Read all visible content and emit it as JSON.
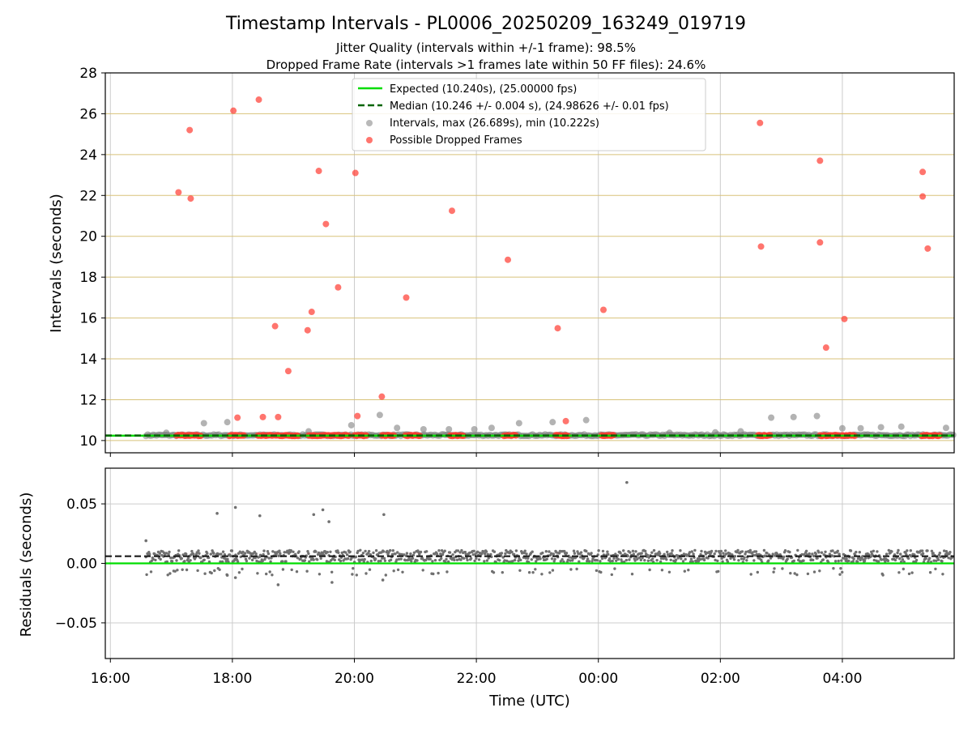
{
  "figure": {
    "title": "Timestamp Intervals - PL0006_20250209_163249_019719",
    "subtitle_1": "Jitter Quality (intervals within +/-1 frame): 98.5%",
    "subtitle_2": "Dropped Frame Rate (intervals >1 frames late within 50 FF files): 24.6%"
  },
  "colors": {
    "expected": "#00dd00",
    "median": "#006400",
    "intervals": "#808080",
    "dropped": "#ff3b30",
    "hgrid_top": "#d8c27a",
    "vgrid": "#cccccc"
  },
  "chart_data": [
    {
      "type": "scatter",
      "ylabel": "Intervals (seconds)",
      "xlim": [
        "15:55",
        "05:50"
      ],
      "ylim": [
        9.4,
        28
      ],
      "x_ticks": [
        "16:00",
        "18:00",
        "20:00",
        "22:00",
        "00:00",
        "02:00",
        "04:00"
      ],
      "y_ticks": [
        "10",
        "12",
        "14",
        "16",
        "18",
        "20",
        "22",
        "24",
        "26",
        "28"
      ],
      "grid": "both",
      "legend_position": "top-center",
      "legend": [
        "Expected (10.240s), (25.00000 fps)",
        "Median (10.246 +/- 0.004 s), (24.98626 +/- 0.01 fps)",
        "Intervals, max (26.689s), min (10.222s)",
        "Possible Dropped Frames"
      ],
      "expected_line": 10.24,
      "median_line": 10.246,
      "interval_band": {
        "x_start": "16:35",
        "x_end": "05:50",
        "y_low": 10.222,
        "y_high": 10.3
      },
      "outlier_intervals": [
        {
          "x": "16:55",
          "y": 10.38
        },
        {
          "x": "17:32",
          "y": 10.85
        },
        {
          "x": "17:55",
          "y": 10.9
        },
        {
          "x": "19:15",
          "y": 10.45
        },
        {
          "x": "19:57",
          "y": 10.75
        },
        {
          "x": "20:25",
          "y": 11.25
        },
        {
          "x": "20:42",
          "y": 10.62
        },
        {
          "x": "21:08",
          "y": 10.55
        },
        {
          "x": "21:33",
          "y": 10.55
        },
        {
          "x": "21:58",
          "y": 10.55
        },
        {
          "x": "22:15",
          "y": 10.62
        },
        {
          "x": "22:42",
          "y": 10.85
        },
        {
          "x": "23:15",
          "y": 10.9
        },
        {
          "x": "23:48",
          "y": 11.0
        },
        {
          "x": "01:10",
          "y": 10.38
        },
        {
          "x": "01:55",
          "y": 10.4
        },
        {
          "x": "02:20",
          "y": 10.45
        },
        {
          "x": "02:50",
          "y": 11.12
        },
        {
          "x": "03:12",
          "y": 11.15
        },
        {
          "x": "03:35",
          "y": 11.2
        },
        {
          "x": "04:00",
          "y": 10.6
        },
        {
          "x": "04:18",
          "y": 10.6
        },
        {
          "x": "04:38",
          "y": 10.65
        },
        {
          "x": "04:58",
          "y": 10.68
        },
        {
          "x": "05:42",
          "y": 10.62
        }
      ],
      "dropped_frames": [
        {
          "x": "17:07",
          "y": 22.15
        },
        {
          "x": "17:18",
          "y": 25.2
        },
        {
          "x": "17:19",
          "y": 21.85
        },
        {
          "x": "18:01",
          "y": 26.15
        },
        {
          "x": "18:05",
          "y": 11.12
        },
        {
          "x": "18:26",
          "y": 26.689
        },
        {
          "x": "18:30",
          "y": 11.15
        },
        {
          "x": "18:42",
          "y": 15.6
        },
        {
          "x": "18:45",
          "y": 11.15
        },
        {
          "x": "18:55",
          "y": 13.4
        },
        {
          "x": "19:14",
          "y": 15.4
        },
        {
          "x": "19:18",
          "y": 16.3
        },
        {
          "x": "19:25",
          "y": 23.2
        },
        {
          "x": "19:32",
          "y": 20.6
        },
        {
          "x": "19:44",
          "y": 17.5
        },
        {
          "x": "20:01",
          "y": 23.1
        },
        {
          "x": "20:03",
          "y": 11.2
        },
        {
          "x": "20:27",
          "y": 12.15
        },
        {
          "x": "20:51",
          "y": 17.0
        },
        {
          "x": "21:36",
          "y": 21.25
        },
        {
          "x": "22:31",
          "y": 18.85
        },
        {
          "x": "23:20",
          "y": 15.5
        },
        {
          "x": "23:28",
          "y": 10.95
        },
        {
          "x": "00:05",
          "y": 16.4
        },
        {
          "x": "02:39",
          "y": 25.55
        },
        {
          "x": "02:40",
          "y": 19.5
        },
        {
          "x": "03:38",
          "y": 23.7
        },
        {
          "x": "03:38",
          "y": 19.7
        },
        {
          "x": "03:44",
          "y": 14.55
        },
        {
          "x": "04:02",
          "y": 15.95
        },
        {
          "x": "05:19",
          "y": 23.15
        },
        {
          "x": "05:19",
          "y": 21.95
        },
        {
          "x": "05:24",
          "y": 19.4
        }
      ],
      "dropped_clusters": [
        {
          "start": "17:05",
          "end": "17:30"
        },
        {
          "start": "17:57",
          "end": "18:12"
        },
        {
          "start": "18:25",
          "end": "18:40"
        },
        {
          "start": "18:42",
          "end": "19:05"
        },
        {
          "start": "19:15",
          "end": "19:55"
        },
        {
          "start": "20:00",
          "end": "20:12"
        },
        {
          "start": "20:27",
          "end": "20:40"
        },
        {
          "start": "20:50",
          "end": "21:05"
        },
        {
          "start": "21:34",
          "end": "21:48"
        },
        {
          "start": "22:27",
          "end": "22:40"
        },
        {
          "start": "23:18",
          "end": "23:30"
        },
        {
          "start": "00:03",
          "end": "00:15"
        },
        {
          "start": "02:37",
          "end": "02:50"
        },
        {
          "start": "03:38",
          "end": "03:57"
        },
        {
          "start": "03:59",
          "end": "04:13"
        },
        {
          "start": "05:18",
          "end": "05:37"
        }
      ]
    },
    {
      "type": "scatter",
      "xlabel": "Time (UTC)",
      "ylabel": "Residuals (seconds)",
      "xlim": [
        "15:55",
        "05:50"
      ],
      "ylim": [
        -0.08,
        0.08
      ],
      "x_ticks": [
        "16:00",
        "18:00",
        "20:00",
        "22:00",
        "00:00",
        "02:00",
        "04:00"
      ],
      "y_ticks": [
        "0.05",
        "0.00",
        "−0.05"
      ],
      "grid": "both",
      "zero_line": 0.0,
      "median_offset": 0.006,
      "band_center": 0.006,
      "band_spread": 0.005,
      "residual_outliers": [
        {
          "x": "16:35",
          "y": 0.019
        },
        {
          "x": "17:45",
          "y": 0.042
        },
        {
          "x": "18:03",
          "y": 0.047
        },
        {
          "x": "18:27",
          "y": 0.04
        },
        {
          "x": "19:20",
          "y": 0.041
        },
        {
          "x": "19:29",
          "y": 0.045
        },
        {
          "x": "19:35",
          "y": 0.035
        },
        {
          "x": "20:29",
          "y": 0.041
        },
        {
          "x": "00:28",
          "y": 0.068
        },
        {
          "x": "18:45",
          "y": -0.018
        },
        {
          "x": "19:38",
          "y": -0.016
        },
        {
          "x": "20:28",
          "y": -0.014
        },
        {
          "x": "17:55",
          "y": -0.01
        },
        {
          "x": "18:03",
          "y": -0.012
        }
      ]
    }
  ]
}
